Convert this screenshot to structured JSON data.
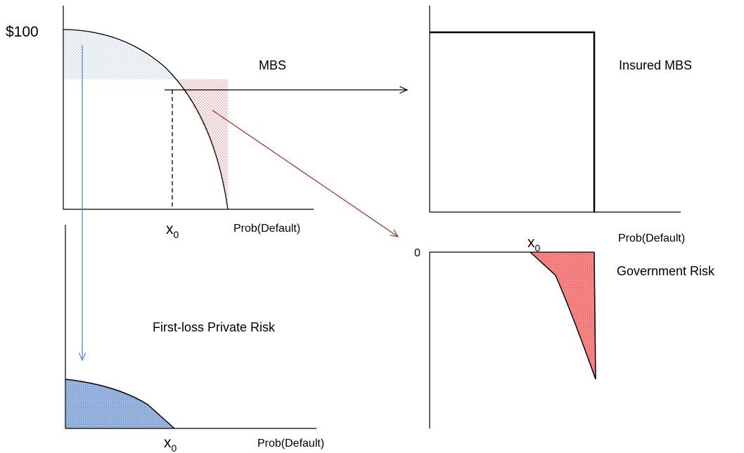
{
  "labels": {
    "price_100": "$100",
    "mbs": "MBS",
    "insured_mbs": "Insured MBS",
    "x0_main": "x",
    "x0_main_sub": "0",
    "prob_default_main": "Prob(Default)",
    "prob_default_insured": "Prob(Default)",
    "zero": "0",
    "x0_gov": "x",
    "x0_gov_sub": "0",
    "government_risk": "Government Risk",
    "first_loss_private_risk": "First-loss Private Risk",
    "x0_private": "x",
    "x0_private_sub": "0",
    "prob_default_private": "Prob(Default)"
  },
  "colors": {
    "axis": "#000000",
    "blue_arrow": "#5b86c9",
    "red_arrow": "#9b3a36",
    "blue_fill": "#8eaedc",
    "blue_dots": "#9fbbe3",
    "red_fill": "#f26a6a",
    "red_dots": "#ee6b6b"
  }
}
